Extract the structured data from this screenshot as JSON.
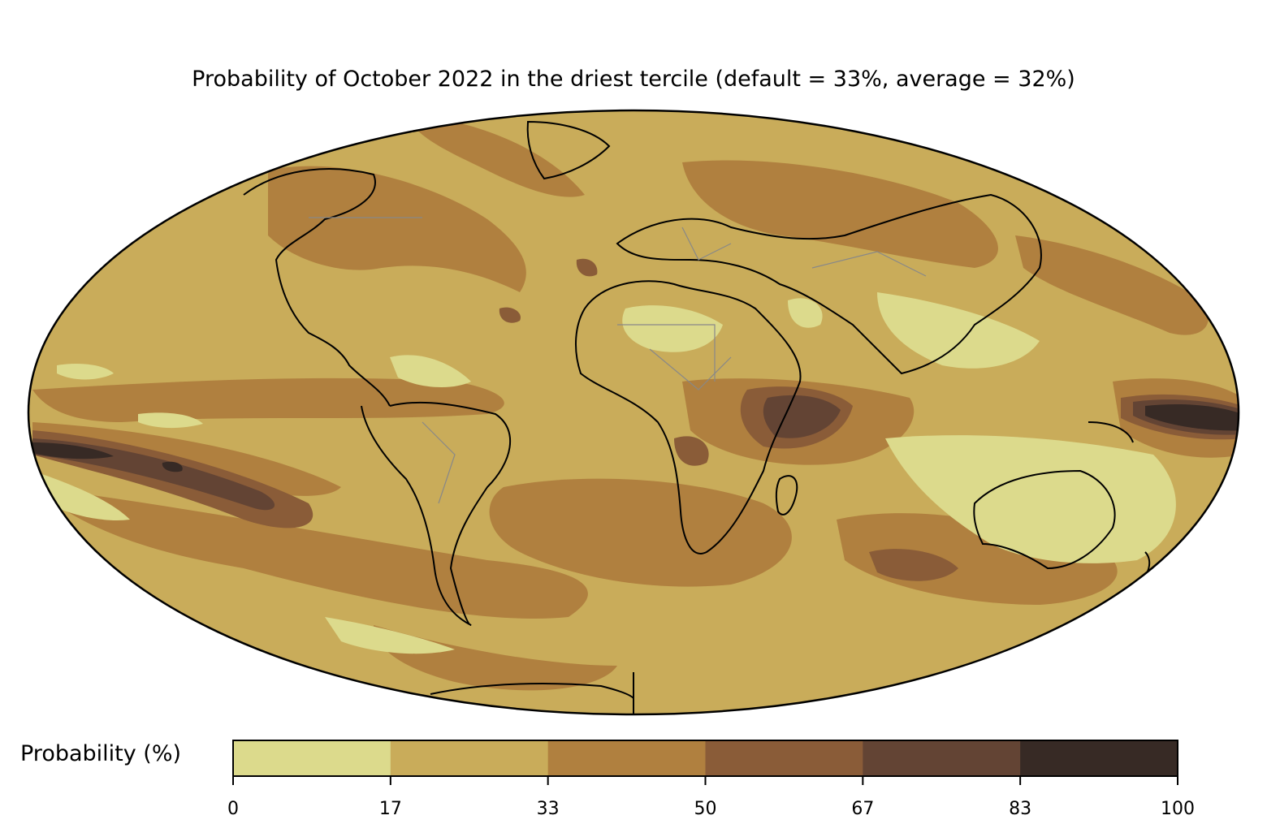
{
  "title": "Probability of October 2022 in the driest tercile (default = 33%, average = 32%)",
  "colorbar": {
    "label": "Probability (%)",
    "ticks": [
      "0",
      "17",
      "33",
      "50",
      "67",
      "83",
      "100"
    ],
    "bins": [
      {
        "range": "0-17",
        "color": "#dcda8c"
      },
      {
        "range": "17-33",
        "color": "#c9ac5a"
      },
      {
        "range": "33-50",
        "color": "#b0803f"
      },
      {
        "range": "50-67",
        "color": "#8a5c38"
      },
      {
        "range": "67-83",
        "color": "#634434"
      },
      {
        "range": "83-100",
        "color": "#372a25"
      }
    ]
  },
  "map": {
    "projection": "Mollweide",
    "background_color": "#c9ac5a",
    "coastline_color": "#000000",
    "border_color": "#888888"
  }
}
